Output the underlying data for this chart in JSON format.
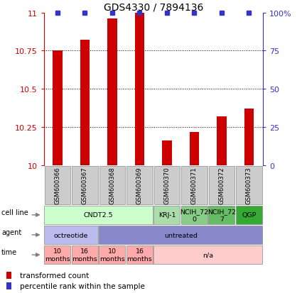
{
  "title": "GDS4330 / 7894136",
  "samples": [
    "GSM600366",
    "GSM600367",
    "GSM600368",
    "GSM600369",
    "GSM600370",
    "GSM600371",
    "GSM600372",
    "GSM600373"
  ],
  "bar_values": [
    10.75,
    10.82,
    10.96,
    11.0,
    10.16,
    10.22,
    10.32,
    10.37
  ],
  "percentile_values": [
    100,
    100,
    100,
    100,
    100,
    100,
    100,
    100
  ],
  "ylim": [
    10,
    11
  ],
  "yticks_left": [
    10,
    10.25,
    10.5,
    10.75,
    11
  ],
  "yticks_right": [
    0,
    25,
    50,
    75,
    100
  ],
  "bar_color": "#cc0000",
  "dot_color": "#3333cc",
  "cell_line_row": {
    "segments": [
      {
        "text": "CNDT2.5",
        "span": [
          0,
          4
        ],
        "color": "#ccffcc"
      },
      {
        "text": "KRJ-1",
        "span": [
          4,
          5
        ],
        "color": "#aaddaa"
      },
      {
        "text": "NCIH_72\n0",
        "span": [
          5,
          6
        ],
        "color": "#88cc88"
      },
      {
        "text": "NCIH_72\n7",
        "span": [
          6,
          7
        ],
        "color": "#66bb66"
      },
      {
        "text": "QGP",
        "span": [
          7,
          8
        ],
        "color": "#33aa33"
      }
    ]
  },
  "agent_row": {
    "segments": [
      {
        "text": "octreotide",
        "span": [
          0,
          2
        ],
        "color": "#bbbbee"
      },
      {
        "text": "untreated",
        "span": [
          2,
          8
        ],
        "color": "#8888cc"
      }
    ]
  },
  "time_row": {
    "segments": [
      {
        "text": "10\nmonths",
        "span": [
          0,
          1
        ],
        "color": "#ffaaaa"
      },
      {
        "text": "16\nmonths",
        "span": [
          1,
          2
        ],
        "color": "#ffaaaa"
      },
      {
        "text": "10\nmonths",
        "span": [
          2,
          3
        ],
        "color": "#ffaaaa"
      },
      {
        "text": "16\nmonths",
        "span": [
          3,
          4
        ],
        "color": "#ffaaaa"
      },
      {
        "text": "n/a",
        "span": [
          4,
          8
        ],
        "color": "#ffcccc"
      }
    ]
  },
  "row_labels": [
    "cell line",
    "agent",
    "time"
  ],
  "legend_items": [
    {
      "label": "transformed count",
      "color": "#cc0000"
    },
    {
      "label": "percentile rank within the sample",
      "color": "#3333cc"
    }
  ],
  "sample_box_color": "#cccccc",
  "left_label_color": "#cc0000",
  "right_label_color": "#3333cc",
  "fig_width": 4.25,
  "fig_height": 4.14,
  "dpi": 100
}
